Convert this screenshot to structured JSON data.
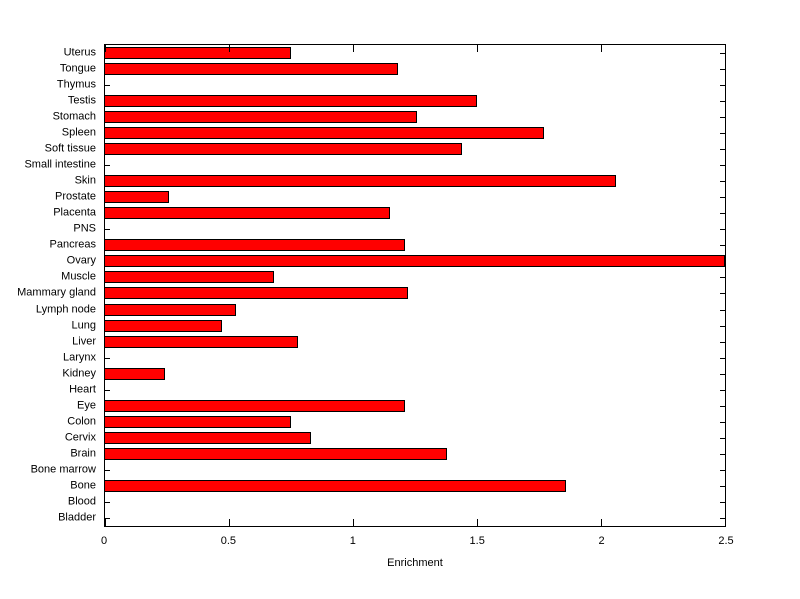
{
  "chart_data": {
    "type": "bar",
    "orientation": "horizontal",
    "title": "",
    "xlabel": "Enrichment",
    "ylabel": "",
    "xlim": [
      0,
      2.5
    ],
    "x_ticks": [
      0,
      0.5,
      1,
      1.5,
      2,
      2.5
    ],
    "x_tick_labels": [
      "0",
      "0.5",
      "1",
      "1.5",
      "2",
      "2.5"
    ],
    "grid": "off",
    "legend": "none",
    "categories": [
      "Uterus",
      "Tongue",
      "Thymus",
      "Testis",
      "Stomach",
      "Spleen",
      "Soft tissue",
      "Small intestine",
      "Skin",
      "Prostate",
      "Placenta",
      "PNS",
      "Pancreas",
      "Ovary",
      "Muscle",
      "Mammary gland",
      "Lymph node",
      "Lung",
      "Liver",
      "Larynx",
      "Kidney",
      "Heart",
      "Eye",
      "Colon",
      "Cervix",
      "Brain",
      "Bone marrow",
      "Bone",
      "Blood",
      "Bladder"
    ],
    "values": [
      0.75,
      1.18,
      0,
      1.5,
      1.26,
      1.77,
      1.44,
      0,
      2.06,
      0.26,
      1.15,
      0,
      1.21,
      2.5,
      0.68,
      1.22,
      0.53,
      0.47,
      0.78,
      0,
      0.24,
      0,
      1.21,
      0.75,
      0.83,
      1.38,
      0,
      1.86,
      0,
      0
    ],
    "bar_color": "#ff0000",
    "bar_edge_color": "#000000",
    "axis_color": "#000000",
    "background_color": "#ffffff"
  }
}
